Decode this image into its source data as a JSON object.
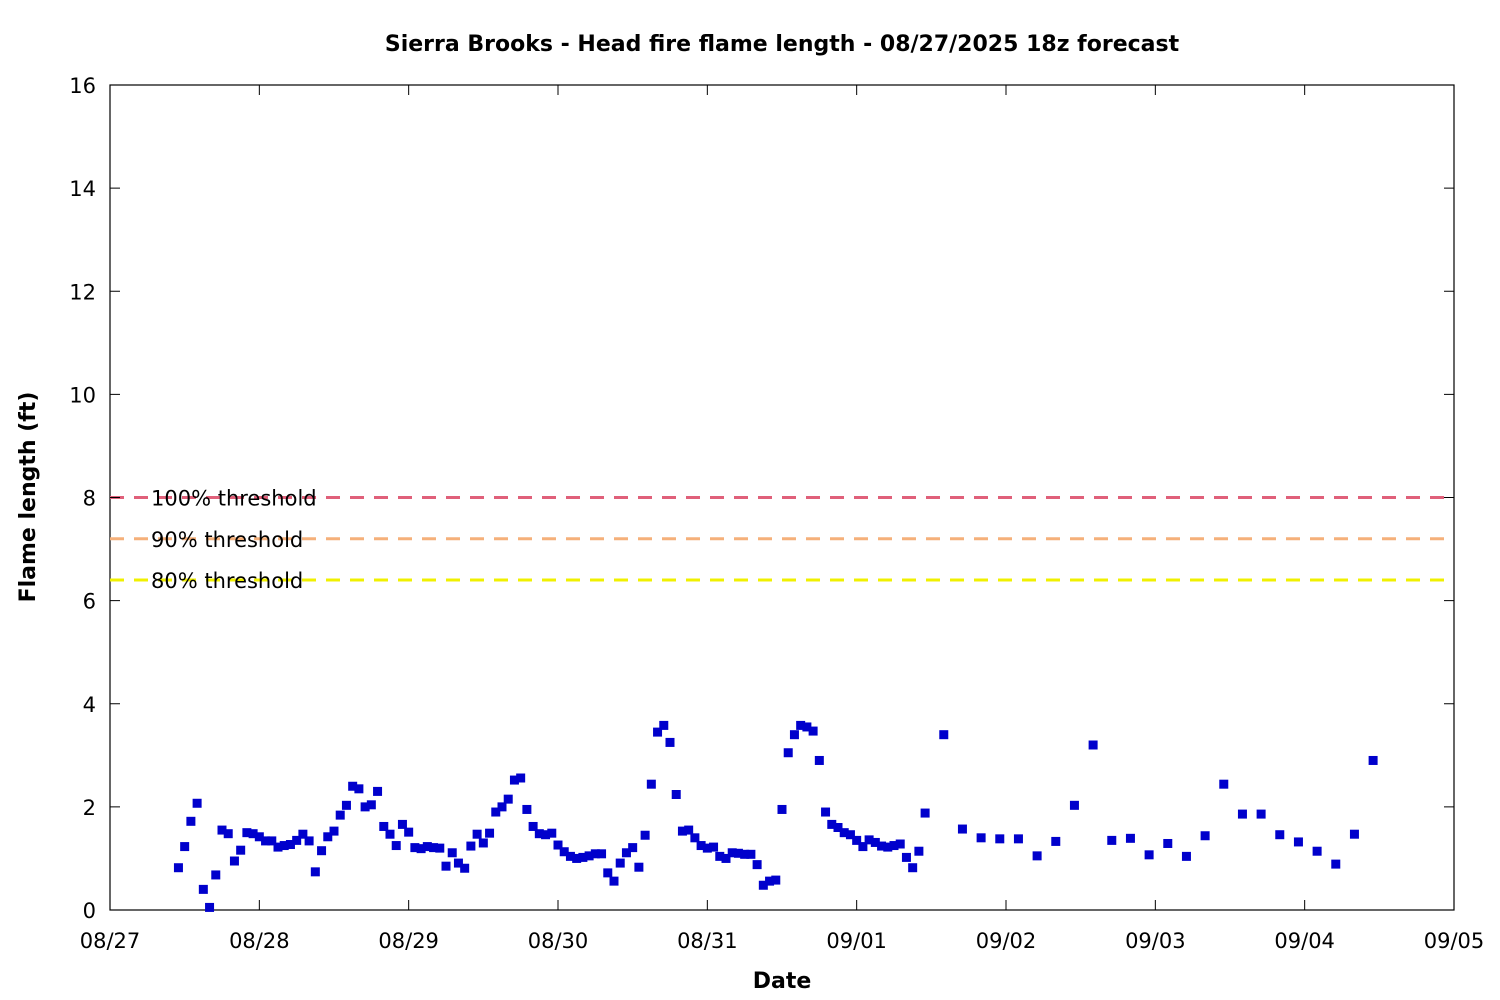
{
  "chart_data": {
    "type": "scatter",
    "title": "Sierra Brooks - Head fire flame length - 08/27/2025 18z forecast",
    "xlabel": "Date",
    "ylabel": "Flame length (ft)",
    "ylim": [
      0,
      16
    ],
    "yticks": [
      0,
      2,
      4,
      6,
      8,
      10,
      12,
      14,
      16
    ],
    "xticks": [
      "08/27",
      "08/28",
      "08/29",
      "08/30",
      "08/31",
      "09/01",
      "09/02",
      "09/03",
      "09/04",
      "09/05"
    ],
    "grid": false,
    "legend": "none",
    "marker_color": "#0000cc",
    "thresholds": [
      {
        "label": "100% threshold",
        "value": 8.0,
        "color": "#e0607a"
      },
      {
        "label": "90% threshold",
        "value": 7.2,
        "color": "#f5b07a"
      },
      {
        "label": "80% threshold",
        "value": 6.4,
        "color": "#f0f000"
      }
    ],
    "series": [
      {
        "x": [
          "08/27 11:00",
          "08/27 12:00",
          "08/27 13:00",
          "08/27 14:00",
          "08/27 15:00",
          "08/27 16:00",
          "08/27 17:00",
          "08/27 18:00",
          "08/27 19:00",
          "08/27 20:00",
          "08/27 21:00",
          "08/27 22:00",
          "08/27 23:00",
          "08/28 00:00",
          "08/28 01:00",
          "08/28 02:00",
          "08/28 03:00",
          "08/28 04:00",
          "08/28 05:00",
          "08/28 06:00",
          "08/28 07:00",
          "08/28 08:00",
          "08/28 09:00",
          "08/28 10:00",
          "08/28 11:00",
          "08/28 12:00",
          "08/28 13:00",
          "08/28 14:00",
          "08/28 15:00",
          "08/28 16:00",
          "08/28 17:00",
          "08/28 18:00",
          "08/28 19:00",
          "08/28 20:00",
          "08/28 21:00",
          "08/28 22:00",
          "08/28 23:00",
          "08/29 00:00",
          "08/29 01:00",
          "08/29 02:00",
          "08/29 03:00",
          "08/29 04:00",
          "08/29 05:00",
          "08/29 06:00",
          "08/29 07:00",
          "08/29 08:00",
          "08/29 09:00",
          "08/29 10:00",
          "08/29 11:00",
          "08/29 12:00",
          "08/29 13:00",
          "08/29 14:00",
          "08/29 15:00",
          "08/29 16:00",
          "08/29 17:00",
          "08/29 18:00",
          "08/29 19:00",
          "08/29 20:00",
          "08/29 21:00",
          "08/29 22:00",
          "08/29 23:00",
          "08/30 00:00",
          "08/30 01:00",
          "08/30 02:00",
          "08/30 03:00",
          "08/30 04:00",
          "08/30 05:00",
          "08/30 06:00",
          "08/30 07:00",
          "08/30 08:00",
          "08/30 09:00",
          "08/30 10:00",
          "08/30 11:00",
          "08/30 12:00",
          "08/30 13:00",
          "08/30 14:00",
          "08/30 15:00",
          "08/30 16:00",
          "08/30 17:00",
          "08/30 18:00",
          "08/30 19:00",
          "08/30 20:00",
          "08/30 21:00",
          "08/30 22:00",
          "08/30 23:00",
          "08/31 00:00",
          "08/31 01:00",
          "08/31 02:00",
          "08/31 03:00",
          "08/31 04:00",
          "08/31 05:00",
          "08/31 06:00",
          "08/31 07:00",
          "08/31 08:00",
          "08/31 09:00",
          "08/31 10:00",
          "08/31 11:00",
          "08/31 12:00",
          "08/31 13:00",
          "08/31 14:00",
          "08/31 15:00",
          "08/31 16:00",
          "08/31 17:00",
          "08/31 18:00",
          "08/31 19:00",
          "08/31 20:00",
          "08/31 21:00",
          "08/31 22:00",
          "08/31 23:00",
          "09/01 00:00",
          "09/01 01:00",
          "09/01 02:00",
          "09/01 03:00",
          "09/01 04:00",
          "09/01 05:00",
          "09/01 06:00",
          "09/01 07:00",
          "09/01 08:00",
          "09/01 09:00",
          "09/01 10:00",
          "09/01 11:00",
          "09/01 14:00",
          "09/01 17:00",
          "09/01 20:00",
          "09/01 23:00",
          "09/02 02:00",
          "09/02 05:00",
          "09/02 08:00",
          "09/02 11:00",
          "09/02 14:00",
          "09/02 17:00",
          "09/02 20:00",
          "09/02 23:00",
          "09/03 02:00",
          "09/03 05:00",
          "09/03 08:00",
          "09/03 11:00",
          "09/03 14:00",
          "09/03 17:00",
          "09/03 20:00",
          "09/03 23:00",
          "09/04 02:00",
          "09/04 05:00",
          "09/04 08:00",
          "09/04 11:00"
        ],
        "y": [
          0.82,
          1.23,
          1.72,
          2.07,
          0.4,
          0.05,
          0.68,
          1.55,
          1.48,
          0.95,
          1.16,
          1.5,
          1.48,
          1.42,
          1.34,
          1.34,
          1.22,
          1.25,
          1.27,
          1.35,
          1.47,
          1.34,
          0.74,
          1.15,
          1.42,
          1.53,
          1.84,
          2.03,
          2.4,
          2.35,
          2.0,
          2.04,
          2.3,
          1.62,
          1.47,
          1.25,
          1.66,
          1.51,
          1.21,
          1.19,
          1.23,
          1.21,
          1.2,
          0.85,
          1.11,
          0.91,
          0.81,
          1.24,
          1.47,
          1.3,
          1.49,
          1.9,
          2.0,
          2.15,
          2.52,
          2.56,
          1.95,
          1.62,
          1.48,
          1.46,
          1.49,
          1.26,
          1.13,
          1.04,
          1.0,
          1.02,
          1.05,
          1.09,
          1.09,
          0.72,
          0.56,
          0.91,
          1.11,
          1.21,
          0.83,
          1.45,
          2.44,
          3.45,
          3.58,
          3.25,
          2.24,
          1.53,
          1.55,
          1.4,
          1.25,
          1.2,
          1.22,
          1.04,
          1.0,
          1.11,
          1.1,
          1.08,
          1.08,
          0.88,
          0.48,
          0.56,
          0.58,
          1.95,
          3.05,
          3.4,
          3.58,
          3.55,
          3.47,
          2.9,
          1.9,
          1.66,
          1.6,
          1.5,
          1.46,
          1.35,
          1.23,
          1.36,
          1.31,
          1.24,
          1.22,
          1.25,
          1.28,
          1.02,
          0.82,
          1.14,
          1.88,
          3.4,
          1.57,
          1.4,
          1.38,
          1.38,
          1.05,
          1.33,
          2.03,
          3.2,
          1.35,
          1.39,
          1.07,
          1.29,
          1.04,
          1.44,
          2.44,
          1.86,
          1.86,
          1.46,
          1.32,
          1.14,
          0.89,
          1.47,
          2.9
        ]
      }
    ]
  }
}
